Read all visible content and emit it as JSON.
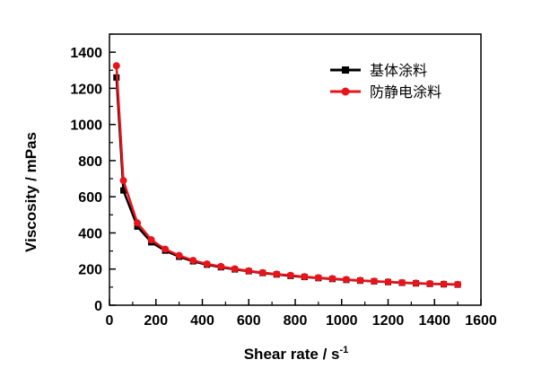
{
  "chart_data": {
    "type": "line",
    "xlabel": "Shear rate / s",
    "xlabel_superscript": "-1",
    "ylabel": "Viscosity / mPas",
    "xlim": [
      0,
      1600
    ],
    "ylim": [
      0,
      1500
    ],
    "x_ticks": [
      0,
      200,
      400,
      600,
      800,
      1000,
      1200,
      1400,
      1600
    ],
    "y_ticks": [
      0,
      200,
      400,
      600,
      800,
      1000,
      1200,
      1400
    ],
    "x_minor_step": 100,
    "y_minor_step": 100,
    "grid": false,
    "legend_position": "top-right",
    "x": [
      30,
      60,
      120,
      180,
      240,
      300,
      360,
      420,
      480,
      540,
      600,
      660,
      720,
      780,
      840,
      900,
      960,
      1020,
      1080,
      1140,
      1200,
      1260,
      1320,
      1380,
      1440,
      1500
    ],
    "series": [
      {
        "name": "基体涂料",
        "color": "#000000",
        "marker": "square",
        "values": [
          1260,
          635,
          435,
          348,
          302,
          268,
          243,
          224,
          210,
          198,
          188,
          178,
          170,
          162,
          156,
          150,
          145,
          140,
          136,
          132,
          128,
          124,
          121,
          118,
          116,
          114
        ]
      },
      {
        "name": "防静电涂料",
        "color": "#e8131b",
        "marker": "circle",
        "values": [
          1325,
          690,
          455,
          362,
          310,
          275,
          248,
          228,
          214,
          201,
          190,
          180,
          172,
          165,
          158,
          152,
          147,
          142,
          137,
          133,
          129,
          125,
          122,
          119,
          117,
          115
        ]
      }
    ]
  }
}
